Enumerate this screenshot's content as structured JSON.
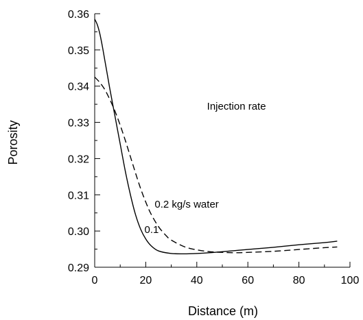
{
  "chart_data": {
    "type": "line",
    "title": "",
    "xlabel": "Distance (m)",
    "ylabel": "Porosity",
    "xlim": [
      0,
      100
    ],
    "ylim": [
      0.29,
      0.36
    ],
    "x_ticks": [
      0,
      20,
      40,
      60,
      80,
      100
    ],
    "x_tick_labels": [
      "0",
      "20",
      "40",
      "60",
      "80",
      "100"
    ],
    "y_ticks": [
      0.29,
      0.3,
      0.31,
      0.32,
      0.33,
      0.34,
      0.35,
      0.36
    ],
    "y_tick_labels": [
      "0.29",
      "0.30",
      "0.31",
      "0.32",
      "0.33",
      "0.34",
      "0.35",
      "0.36"
    ],
    "grid": false,
    "annotations": [
      {
        "text": "Injection rate",
        "x": 44,
        "y": 0.3335
      },
      {
        "text": "0.2 kg/s water",
        "x": 23.5,
        "y": 0.3065
      },
      {
        "text": "0.1",
        "x": 19.5,
        "y": 0.2995
      }
    ],
    "series": [
      {
        "style": "solid",
        "x": [
          0,
          1,
          2,
          3,
          4,
          5,
          6,
          8,
          10,
          12,
          14,
          16,
          18,
          20,
          22,
          25,
          30,
          35,
          40,
          45,
          50,
          55,
          60,
          70,
          80,
          90,
          95
        ],
        "y": [
          0.3585,
          0.357,
          0.3545,
          0.351,
          0.347,
          0.343,
          0.339,
          0.3315,
          0.324,
          0.3165,
          0.31,
          0.3045,
          0.3005,
          0.2978,
          0.296,
          0.2945,
          0.2938,
          0.2937,
          0.2938,
          0.294,
          0.2943,
          0.2946,
          0.2949,
          0.2955,
          0.2962,
          0.2968,
          0.2972
        ]
      },
      {
        "style": "dashed",
        "x": [
          0,
          2,
          4,
          6,
          8,
          10,
          12,
          14,
          16,
          18,
          20,
          22,
          25,
          28,
          30,
          35,
          40,
          45,
          50,
          55,
          60,
          70,
          80,
          90,
          95
        ],
        "y": [
          0.3425,
          0.341,
          0.339,
          0.3362,
          0.333,
          0.3292,
          0.325,
          0.3205,
          0.316,
          0.3117,
          0.308,
          0.3048,
          0.3012,
          0.2987,
          0.2975,
          0.2957,
          0.2948,
          0.2943,
          0.2941,
          0.294,
          0.2941,
          0.2944,
          0.2949,
          0.2954,
          0.2956
        ]
      }
    ]
  }
}
